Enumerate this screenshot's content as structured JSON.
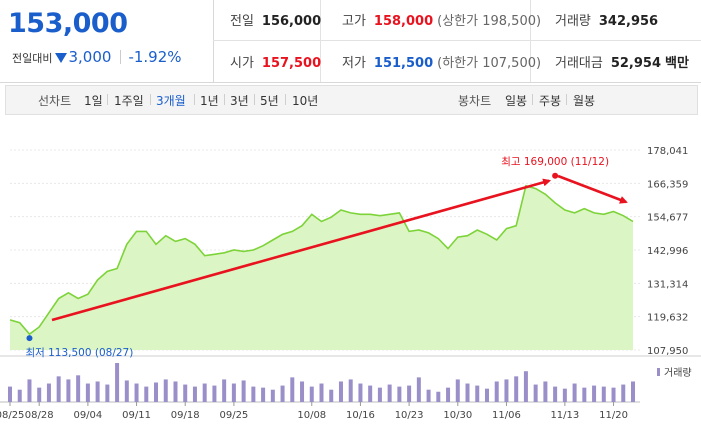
{
  "quote": {
    "price": "153,000",
    "change_label": "전일대비",
    "change": "3,000",
    "change_pct": "-1.92%",
    "prev_close": {
      "label": "전일",
      "value": "156,000"
    },
    "high": {
      "label": "고가",
      "value": "158,000",
      "extra": "(상한가 198,500)"
    },
    "volume": {
      "label": "거래량",
      "value": "342,956"
    },
    "open": {
      "label": "시가",
      "value": "157,500"
    },
    "low": {
      "label": "저가",
      "value": "151,500",
      "extra": "(하한가 107,500)"
    },
    "amount": {
      "label": "거래대금",
      "value": "52,954",
      "unit": "백만"
    }
  },
  "toolbar": {
    "line_label": "선차트",
    "periods": [
      "1일",
      "1주일",
      "3개월",
      "1년",
      "3년",
      "5년",
      "10년"
    ],
    "active_period": "3개월",
    "candle_label": "봉차트",
    "candles": [
      "일봉",
      "주봉",
      "월봉"
    ]
  },
  "colors": {
    "up": "#e8131f",
    "down": "#1a5ecc",
    "line": "#7dd33a",
    "volume": "#9b8fc9",
    "arrow": "#e8131f"
  },
  "chart_data": {
    "type": "area",
    "x": [
      "08/25",
      "08/26",
      "08/27",
      "08/28",
      "08/29",
      "09/01",
      "09/02",
      "09/03",
      "09/04",
      "09/05",
      "09/06",
      "09/07",
      "09/08",
      "09/11",
      "09/12",
      "09/13",
      "09/14",
      "09/15",
      "09/18",
      "09/19",
      "09/20",
      "09/21",
      "09/22",
      "09/25",
      "09/26",
      "09/27",
      "09/28",
      "09/29",
      "10/04",
      "10/05",
      "10/06",
      "10/08",
      "10/10",
      "10/11",
      "10/12",
      "10/13",
      "10/16",
      "10/17",
      "10/18",
      "10/19",
      "10/20",
      "10/23",
      "10/24",
      "10/25",
      "10/26",
      "10/27",
      "10/30",
      "10/31",
      "11/01",
      "11/02",
      "11/03",
      "11/06",
      "11/07",
      "11/08",
      "11/09",
      "11/10",
      "11/12",
      "11/13",
      "11/14",
      "11/15",
      "11/16",
      "11/17",
      "11/20",
      "11/21",
      "11/22"
    ],
    "close": [
      118500,
      117500,
      113500,
      116000,
      121000,
      126000,
      128000,
      126000,
      127500,
      132500,
      135500,
      136500,
      145000,
      149500,
      149500,
      145000,
      148000,
      146000,
      147000,
      145000,
      141000,
      141500,
      142000,
      143000,
      142500,
      143000,
      144500,
      146500,
      148500,
      149500,
      151500,
      155500,
      153000,
      154500,
      157000,
      156000,
      155500,
      155500,
      155000,
      155500,
      156000,
      149500,
      150000,
      149000,
      147000,
      143500,
      147500,
      148000,
      150000,
      148500,
      146500,
      150500,
      151500,
      165500,
      164500,
      162500,
      159500,
      157000,
      156000,
      157500,
      156000,
      155500,
      156500,
      155000,
      153000
    ],
    "volume": [
      15,
      12,
      22,
      14,
      18,
      25,
      22,
      26,
      18,
      20,
      17,
      38,
      21,
      18,
      15,
      19,
      22,
      20,
      17,
      15,
      18,
      16,
      22,
      18,
      21,
      15,
      14,
      12,
      16,
      24,
      20,
      15,
      18,
      12,
      20,
      22,
      18,
      16,
      14,
      17,
      15,
      16,
      24,
      12,
      10,
      14,
      22,
      18,
      16,
      13,
      20,
      22,
      25,
      30,
      17,
      20,
      15,
      13,
      18,
      14,
      16,
      15,
      14,
      17,
      20
    ],
    "ylim": [
      107950,
      178041
    ],
    "y_ticks": [
      "178,041",
      "166,359",
      "154,677",
      "142,996",
      "131,314",
      "119,632",
      "107,950"
    ],
    "x_tick_labels": [
      "08/25",
      "08/28",
      "09/04",
      "09/11",
      "09/18",
      "09/25",
      "10/08",
      "10/16",
      "10/23",
      "10/30",
      "11/06",
      "11/13",
      "11/20"
    ],
    "max_annotation": {
      "label": "최고",
      "value": "169,000",
      "date": "(11/12)",
      "price": 169000
    },
    "min_annotation": {
      "label": "최저",
      "value": "113,500",
      "date": "(08/27)",
      "price": 113500
    },
    "volume_label": "거래량"
  }
}
